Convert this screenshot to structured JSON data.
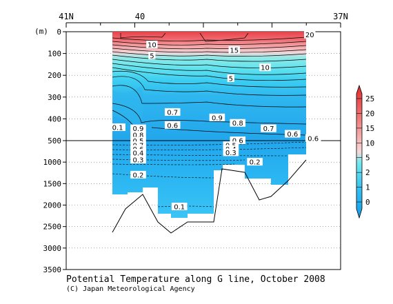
{
  "chart_data": {
    "type": "heatmap",
    "title": "Potential Temperature along G line, October 2008",
    "credit": "(C) Japan Meteorological Agency",
    "yunit": "(m)",
    "x_ticks": [
      "41N",
      "40",
      "37N"
    ],
    "y_ticks_upper": [
      "0",
      "100",
      "200",
      "300",
      "400",
      "500"
    ],
    "y_ticks_lower": [
      "1000",
      "1500",
      "2000",
      "2500",
      "3000",
      "3500"
    ],
    "ylim_upper": [
      0,
      500
    ],
    "ylim_lower": [
      500,
      3500
    ],
    "split_depth_m": 500,
    "colorbar": {
      "ticks": [
        "0",
        "1",
        "2",
        "5",
        "10",
        "15",
        "20",
        "25"
      ],
      "colors": [
        "#1a9ae6",
        "#27b2f0",
        "#3ac8f3",
        "#56e0f0",
        "#7cecec",
        "#a8f4f0",
        "#f8d8d8",
        "#f6b8b8",
        "#f29a9a",
        "#ee7c7c",
        "#ea5e5e",
        "#e64444",
        "#e02a2a"
      ]
    },
    "contour_labels": [
      {
        "text": "20",
        "lat": 37.45,
        "depth": 15
      },
      {
        "text": "10",
        "lat": 39.75,
        "depth": 60
      },
      {
        "text": "15",
        "lat": 38.55,
        "depth": 85
      },
      {
        "text": "5",
        "lat": 39.75,
        "depth": 110
      },
      {
        "text": "10",
        "lat": 38.1,
        "depth": 165
      },
      {
        "text": "5",
        "lat": 38.6,
        "depth": 215
      },
      {
        "text": "0.7",
        "lat": 39.45,
        "depth": 370
      },
      {
        "text": "0.9",
        "lat": 38.8,
        "depth": 395
      },
      {
        "text": "0.6",
        "lat": 39.45,
        "depth": 430
      },
      {
        "text": "0.8",
        "lat": 38.5,
        "depth": 420
      },
      {
        "text": "0.1",
        "lat": 40.25,
        "depth": 440
      },
      {
        "text": "0.9",
        "lat": 39.95,
        "depth": 445
      },
      {
        "text": "0.7",
        "lat": 38.05,
        "depth": 445
      },
      {
        "text": "0.6",
        "lat": 37.7,
        "depth": 470
      },
      {
        "text": "0.8",
        "lat": 39.95,
        "depth": 475
      },
      {
        "text": "0.6",
        "lat": 37.4,
        "depth": 490
      },
      {
        "text": "0.6",
        "lat": 38.5,
        "depth": 500
      },
      {
        "text": "0.5",
        "lat": 39.95,
        "depth": 510
      },
      {
        "text": "0.7",
        "lat": 39.95,
        "depth": 615
      },
      {
        "text": "0.5",
        "lat": 38.6,
        "depth": 615
      },
      {
        "text": "0.6",
        "lat": 39.95,
        "depth": 700
      },
      {
        "text": "0.4",
        "lat": 38.6,
        "depth": 700
      },
      {
        "text": "0.4",
        "lat": 39.95,
        "depth": 790
      },
      {
        "text": "0.3",
        "lat": 38.6,
        "depth": 780
      },
      {
        "text": "0.3",
        "lat": 39.95,
        "depth": 950
      },
      {
        "text": "0.2",
        "lat": 38.25,
        "depth": 1000
      },
      {
        "text": "0.2",
        "lat": 39.95,
        "depth": 1300
      },
      {
        "text": "0.1",
        "lat": 39.35,
        "depth": 2040
      }
    ]
  }
}
